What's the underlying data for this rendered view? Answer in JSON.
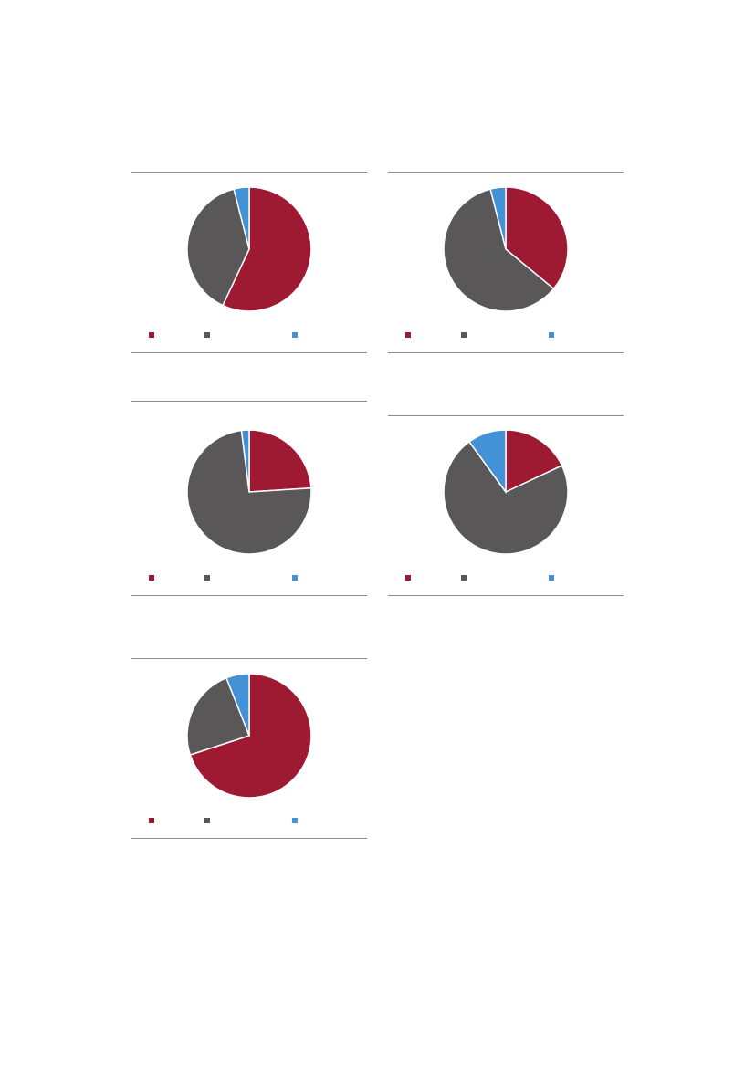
{
  "colors": {
    "red": "#9e1a32",
    "gray": "#595757",
    "blue": "#4391d6",
    "rule": "#8c8c8c"
  },
  "chart_data": [
    {
      "type": "pie",
      "slices": [
        {
          "value": 57,
          "color": "#9e1a32"
        },
        {
          "value": 39,
          "color": "#595757"
        },
        {
          "value": 4,
          "color": "#4391d6"
        }
      ],
      "legend": "bottom"
    },
    {
      "type": "pie",
      "slices": [
        {
          "value": 36,
          "color": "#9e1a32"
        },
        {
          "value": 60,
          "color": "#595757"
        },
        {
          "value": 4,
          "color": "#4391d6"
        }
      ],
      "legend": "bottom"
    },
    {
      "type": "pie",
      "slices": [
        {
          "value": 24,
          "color": "#9e1a32"
        },
        {
          "value": 74,
          "color": "#595757"
        },
        {
          "value": 2,
          "color": "#4391d6"
        }
      ],
      "legend": "bottom"
    },
    {
      "type": "pie",
      "slices": [
        {
          "value": 18,
          "color": "#9e1a32"
        },
        {
          "value": 72,
          "color": "#595757"
        },
        {
          "value": 10,
          "color": "#4391d6"
        }
      ],
      "legend": "bottom"
    },
    {
      "type": "pie",
      "slices": [
        {
          "value": 70,
          "color": "#9e1a32"
        },
        {
          "value": 24,
          "color": "#595757"
        },
        {
          "value": 6,
          "color": "#4391d6"
        }
      ],
      "legend": "bottom"
    }
  ]
}
